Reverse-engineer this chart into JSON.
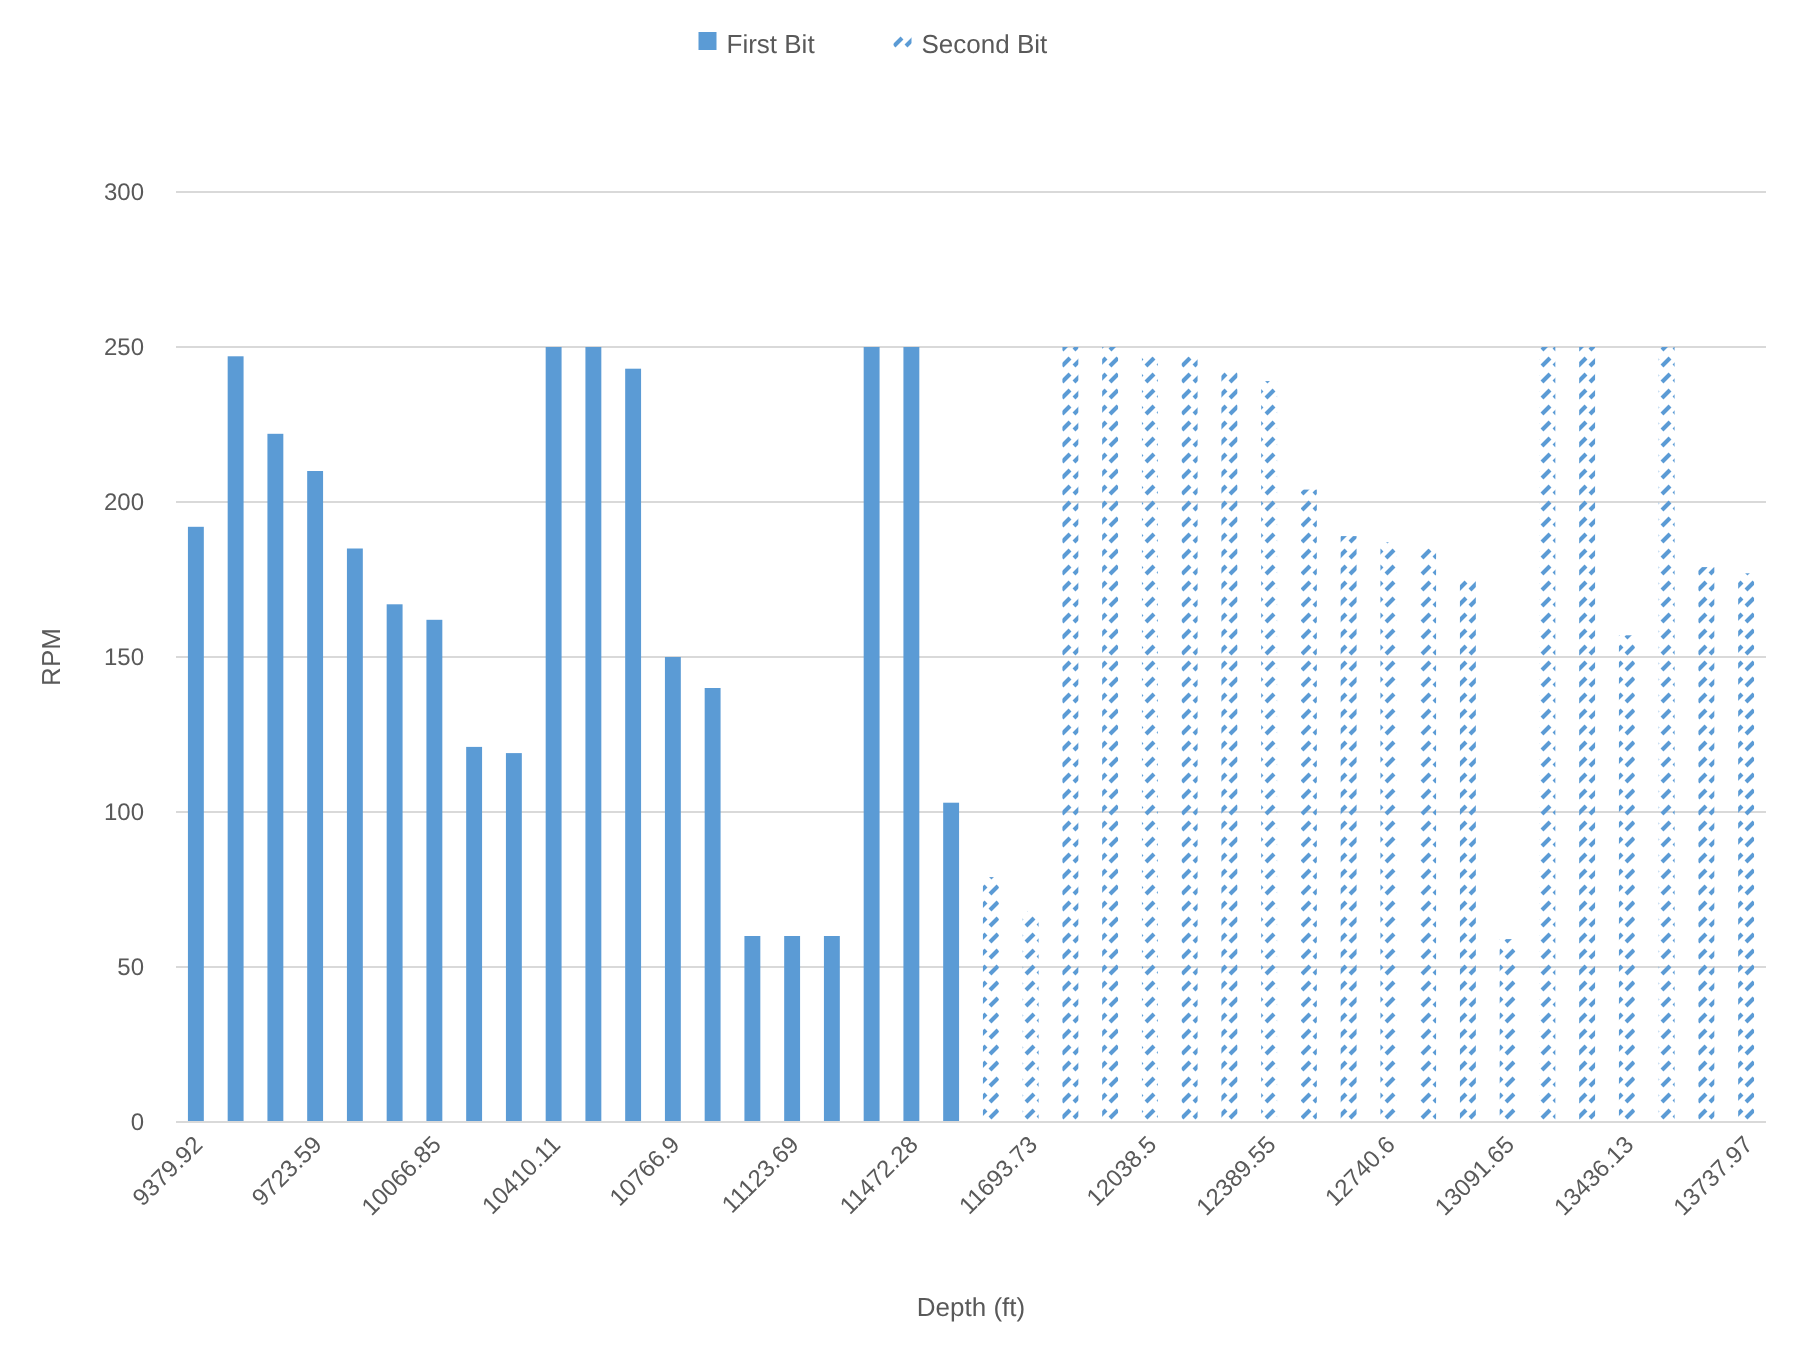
{
  "chart_data": {
    "type": "bar",
    "xlabel": "Depth (ft)",
    "ylabel": "RPM",
    "categories": [
      "9379.92",
      null,
      null,
      "9723.59",
      null,
      null,
      "10066.85",
      null,
      null,
      "10410.11",
      null,
      null,
      "10766.9",
      null,
      null,
      "11123.69",
      null,
      null,
      "11472.28",
      null,
      null,
      "11693.73",
      null,
      null,
      "12038.5",
      null,
      null,
      "12389.55",
      null,
      null,
      "12740.6",
      null,
      null,
      "13091.65",
      null,
      null,
      "13436.13",
      null,
      null,
      "13737.97"
    ],
    "series": [
      {
        "name": "First Bit",
        "color": "#5b9bd5",
        "values": [
          192,
          247,
          222,
          210,
          185,
          167,
          162,
          121,
          119,
          250,
          250,
          243,
          150,
          140,
          60,
          60,
          60,
          250,
          250,
          103,
          null,
          null,
          null,
          null,
          null,
          null,
          null,
          null,
          null,
          null,
          null,
          null,
          null,
          null,
          null,
          null,
          null,
          null,
          null,
          null
        ]
      },
      {
        "name": "Second Bit",
        "color": "#5b9bd5",
        "values": [
          null,
          null,
          null,
          null,
          null,
          null,
          null,
          null,
          null,
          null,
          null,
          null,
          null,
          null,
          null,
          null,
          null,
          null,
          null,
          null,
          79,
          68,
          250,
          250,
          247,
          247,
          243,
          239,
          204,
          189,
          187,
          185,
          176,
          59,
          250,
          250,
          157,
          250,
          179,
          177
        ]
      }
    ],
    "ylim": [
      0,
      300
    ],
    "yticks": [
      0,
      50,
      100,
      150,
      200,
      250,
      300
    ],
    "grid": "y",
    "legend": "top"
  }
}
